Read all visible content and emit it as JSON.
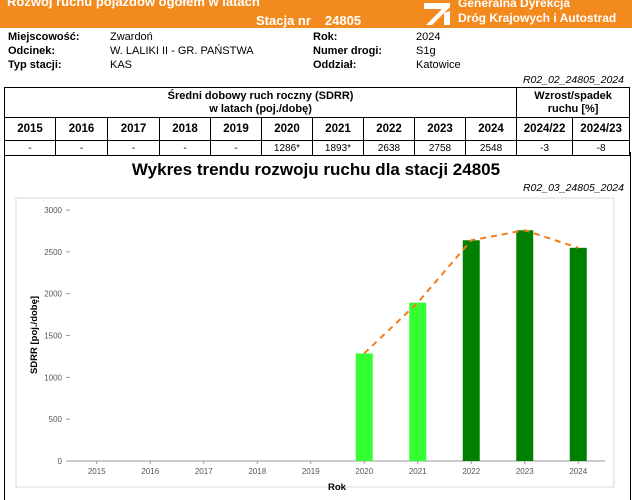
{
  "header": {
    "title": "Rozwój ruchu pojazdów ogółem w latach",
    "station_label": "Stacja nr",
    "station_number": "24805",
    "org_line1": "Generalna Dyrekcja",
    "org_line2": "Dróg Krajowych i Autostrad"
  },
  "info": {
    "miejscowosc_label": "Miejscowość:",
    "miejscowosc_value": "Zwardoń",
    "odcinek_label": "Odcinek:",
    "odcinek_value": "W. LALIKI II - GR. PAŃSTWA",
    "typ_label": "Typ stacji:",
    "typ_value": "KAS",
    "rok_label": "Rok:",
    "rok_value": "2024",
    "numer_label": "Numer drogi:",
    "numer_value": "S1g",
    "oddzial_label": "Oddział:",
    "oddzial_value": "Katowice"
  },
  "table": {
    "code": "R02_02_24805_2024",
    "sdrr_header_line1": "Średni dobowy ruch roczny (SDRR)",
    "sdrr_header_line2": "w latach (poj./dobę)",
    "growth_header_line1": "Wzrost/spadek",
    "growth_header_line2": "ruchu [%]",
    "years": [
      "2015",
      "2016",
      "2017",
      "2018",
      "2019",
      "2020",
      "2021",
      "2022",
      "2023",
      "2024",
      "2024/22",
      "2024/23"
    ],
    "values": [
      "-",
      "-",
      "-",
      "-",
      "-",
      "1286*",
      "1893*",
      "2638",
      "2758",
      "2548",
      "-3",
      "-8"
    ]
  },
  "chart": {
    "title": "Wykres trendu rozwoju ruchu dla stacji 24805",
    "code": "R02_03_24805_2024"
  },
  "chart_data": {
    "type": "bar",
    "categories": [
      "2015",
      "2016",
      "2017",
      "2018",
      "2019",
      "2020",
      "2021",
      "2022",
      "2023",
      "2024"
    ],
    "values": [
      null,
      null,
      null,
      null,
      null,
      1286,
      1893,
      2638,
      2758,
      2548
    ],
    "bar_colors": [
      "#33ff33",
      "#33ff33",
      "#33ff33",
      "#33ff33",
      "#33ff33",
      "#33ff33",
      "#33ff33",
      "#008000",
      "#008000",
      "#008000"
    ],
    "trend": [
      null,
      null,
      null,
      null,
      null,
      1286,
      1893,
      2638,
      2758,
      2548
    ],
    "trend_color": "#f07d19",
    "xlabel": "Rok",
    "ylabel": "SDRR [poj./dobę]",
    "ylim": [
      0,
      3000
    ],
    "yticks": [
      0,
      500,
      1000,
      1500,
      2000,
      2500,
      3000
    ],
    "grid": false
  }
}
